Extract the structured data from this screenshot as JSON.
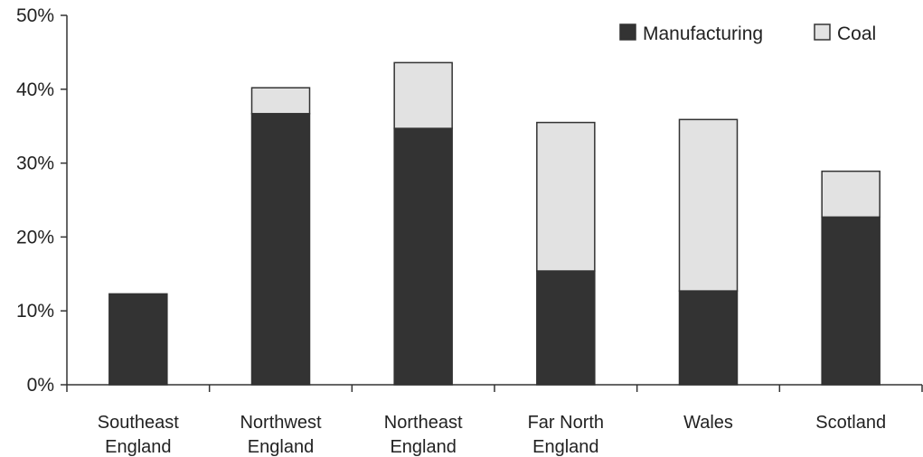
{
  "chart_data": {
    "type": "bar",
    "stacked": true,
    "categories": [
      [
        "Southeast",
        "England"
      ],
      [
        "Northwest",
        "England"
      ],
      [
        "Northeast",
        "England"
      ],
      [
        "Far North",
        "England"
      ],
      [
        "Wales"
      ],
      [
        "Scotland"
      ]
    ],
    "series": [
      {
        "name": "Manufacturing",
        "color": "#333333",
        "values": [
          12.3,
          36.7,
          34.7,
          15.4,
          12.7,
          22.7
        ]
      },
      {
        "name": "Coal",
        "color": "#e2e2e2",
        "values": [
          0,
          3.5,
          8.9,
          20.1,
          23.2,
          6.2
        ]
      }
    ],
    "ylim": [
      0,
      50
    ],
    "yticks": [
      0,
      10,
      20,
      30,
      40,
      50
    ],
    "ytick_labels": [
      "0%",
      "10%",
      "20%",
      "30%",
      "40%",
      "50%"
    ],
    "title": "",
    "xlabel": "",
    "ylabel": "",
    "legend": "top-right",
    "grid": false
  }
}
